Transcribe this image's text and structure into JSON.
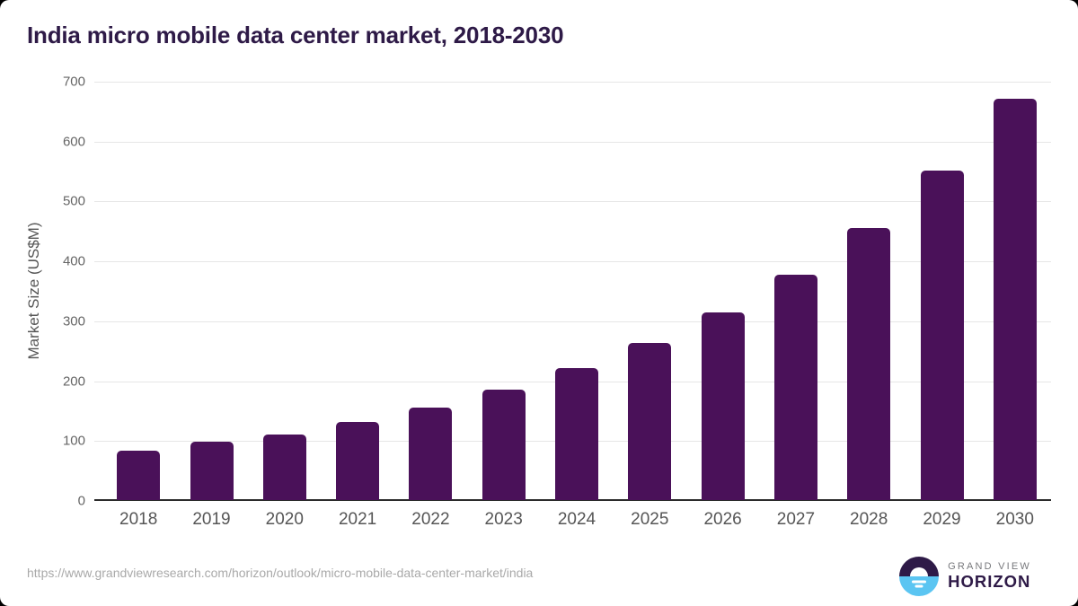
{
  "title": "India micro mobile data center market, 2018-2030",
  "source_url": "https://www.grandviewresearch.com/horizon/outlook/micro-mobile-data-center-market/india",
  "brand": {
    "line_top": "GRAND VIEW",
    "line_bottom": "HORIZON"
  },
  "colors": {
    "bar": "#4a1159",
    "title_text": "#2e1a47",
    "brand_purple": "#2e1a47",
    "brand_blue": "#5bc5f2",
    "white": "#ffffff",
    "grid": "#e7e7e7",
    "axis": "#2b2b2b",
    "tick_text": "#666666",
    "label_text": "#565656",
    "url_text": "#a9a9a9",
    "brand_gray": "#77787c"
  },
  "chart_data": {
    "type": "bar",
    "title": "India micro mobile data center market, 2018-2030",
    "categories": [
      "2018",
      "2019",
      "2020",
      "2021",
      "2022",
      "2023",
      "2024",
      "2025",
      "2026",
      "2027",
      "2028",
      "2029",
      "2030"
    ],
    "values": [
      83,
      97,
      110,
      131,
      155,
      184,
      220,
      262,
      313,
      376,
      454,
      550,
      670
    ],
    "xlabel": "",
    "ylabel": "Market Size (US$M)",
    "ylim": [
      0,
      700
    ],
    "ytick_step": 100,
    "yticks": [
      0,
      100,
      200,
      300,
      400,
      500,
      600,
      700
    ],
    "grid": "horizontal",
    "legend": "none"
  }
}
